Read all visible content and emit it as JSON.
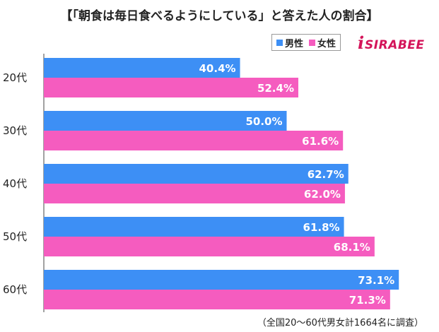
{
  "title": "【「朝食は毎日食べるようにしている」と答えた人の割合】",
  "legend": [
    {
      "name": "男性",
      "color": "#3d8ff5"
    },
    {
      "name": "女性",
      "color": "#f55cbf"
    }
  ],
  "logo": {
    "text": "SIRABEE",
    "mark": "i",
    "color": "#d4145a"
  },
  "footnote": "（全国20～60代男女計1664名に調査）",
  "chart_data": {
    "type": "bar",
    "orientation": "horizontal",
    "categories": [
      "20代",
      "30代",
      "40代",
      "50代",
      "60代"
    ],
    "series": [
      {
        "name": "男性",
        "color": "#3d8ff5",
        "values": [
          40.4,
          50.0,
          62.7,
          61.8,
          73.1
        ],
        "labels": [
          "40.4%",
          "50.0%",
          "62.7%",
          "61.8%",
          "73.1%"
        ]
      },
      {
        "name": "女性",
        "color": "#f55cbf",
        "values": [
          52.4,
          61.6,
          62.0,
          68.1,
          71.3
        ],
        "labels": [
          "52.4%",
          "61.6%",
          "62.0%",
          "68.1%",
          "71.3%"
        ]
      }
    ],
    "xlim": [
      0,
      80
    ],
    "grid": false,
    "legend_position": "top-right"
  }
}
